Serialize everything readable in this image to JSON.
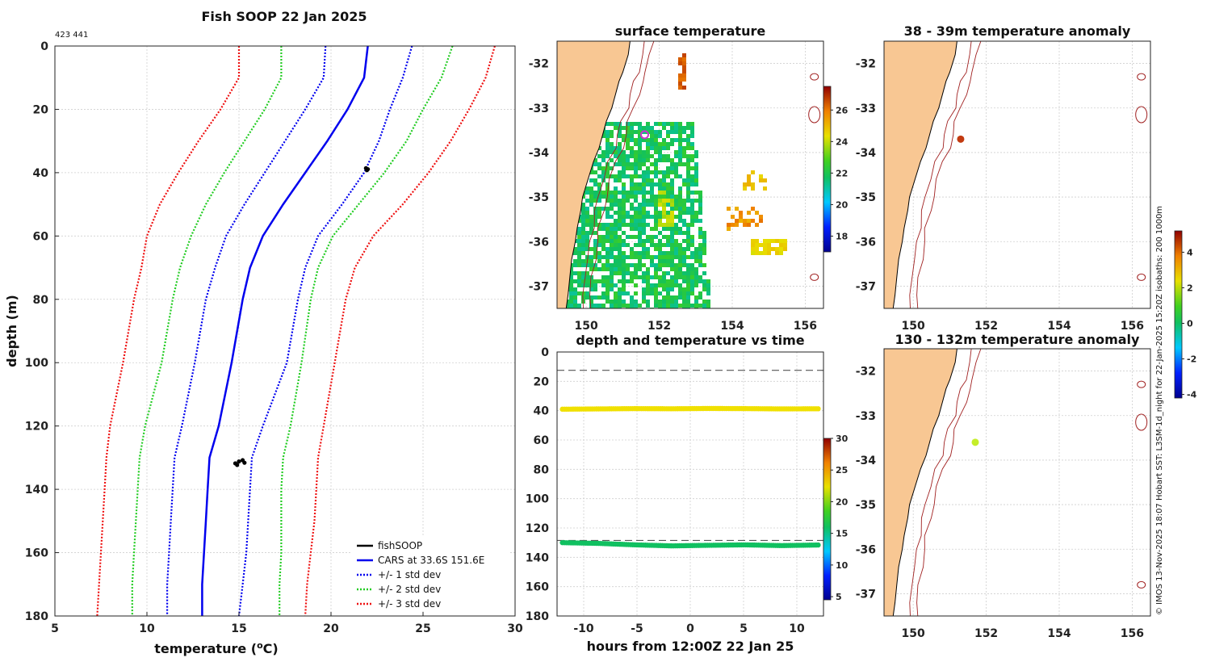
{
  "figure": {
    "title": "Fish SOOP 22 Jan 2025",
    "id_label": "423 441",
    "credit": "© IMOS 13-Nov-2025 18:07 Hobart SST: L3SM-1d_night for 22-Jan-2025 15:20Z isobaths: 200  1000m"
  },
  "colors": {
    "land": "#f8c793",
    "coast": "#000000",
    "isobath": "#a02020",
    "cars": "#0000ee",
    "sd1": "#0000ee",
    "sd2": "#22cc22",
    "sd3": "#ee1111",
    "fish": "#000000",
    "ref_line": "#555555"
  },
  "chart_data": [
    {
      "id": "profile",
      "type": "line",
      "title": "Fish SOOP 22 Jan 2025",
      "xlabel": "temperature (",
      "xlabel_sup": "o",
      "xlabel_tail": "C)",
      "ylabel": "depth (m)",
      "xlim": [
        5,
        30
      ],
      "ylim": [
        0,
        180
      ],
      "y_reversed": true,
      "xticks": [
        5,
        10,
        15,
        20,
        25,
        30
      ],
      "yticks": [
        0,
        20,
        40,
        60,
        80,
        100,
        120,
        140,
        160,
        180
      ],
      "depths": [
        0,
        10,
        20,
        30,
        40,
        50,
        60,
        70,
        80,
        100,
        120,
        130,
        140,
        150,
        160,
        170,
        180
      ],
      "series": [
        {
          "name": "CARS at 33.6S 151.6E",
          "key": "cars",
          "style": "solid",
          "values": [
            22.0,
            21.8,
            20.9,
            19.8,
            18.6,
            17.4,
            16.3,
            15.6,
            15.2,
            14.6,
            13.9,
            13.4,
            13.3,
            13.2,
            13.1,
            13.0,
            13.0
          ]
        },
        {
          "name": "+1 std dev",
          "key": "sd1",
          "style": "dotted",
          "legend": false,
          "values": [
            24.4,
            23.9,
            23.2,
            22.6,
            21.8,
            20.6,
            19.3,
            18.6,
            18.2,
            17.6,
            16.3,
            15.7,
            15.6,
            15.5,
            15.4,
            15.2,
            15.0
          ]
        },
        {
          "name": "-1 std dev",
          "key": "sd1",
          "style": "dotted",
          "legend": false,
          "values": [
            19.7,
            19.6,
            18.6,
            17.5,
            16.4,
            15.3,
            14.3,
            13.7,
            13.2,
            12.6,
            11.9,
            11.5,
            11.4,
            11.3,
            11.2,
            11.1,
            11.1
          ]
        },
        {
          "name": "+2 std dev",
          "key": "sd2",
          "style": "dotted",
          "legend": false,
          "values": [
            26.6,
            26.0,
            25.0,
            24.1,
            22.9,
            21.5,
            20.1,
            19.3,
            18.9,
            18.4,
            17.8,
            17.4,
            17.3,
            17.3,
            17.3,
            17.2,
            17.2
          ]
        },
        {
          "name": "-2 std dev",
          "key": "sd2",
          "style": "dotted",
          "legend": false,
          "values": [
            17.3,
            17.3,
            16.4,
            15.3,
            14.2,
            13.2,
            12.4,
            11.8,
            11.4,
            10.8,
            9.9,
            9.6,
            9.5,
            9.4,
            9.3,
            9.2,
            9.2
          ]
        },
        {
          "name": "+3 std dev",
          "key": "sd3",
          "style": "dotted",
          "legend": false,
          "values": [
            28.9,
            28.4,
            27.5,
            26.5,
            25.3,
            23.9,
            22.3,
            21.3,
            20.8,
            20.2,
            19.6,
            19.3,
            19.2,
            19.1,
            18.9,
            18.7,
            18.6
          ]
        },
        {
          "name": "-3 std dev",
          "key": "sd3",
          "style": "dotted",
          "legend": false,
          "values": [
            15.0,
            15.0,
            14.0,
            12.8,
            11.7,
            10.7,
            10.0,
            9.7,
            9.3,
            8.7,
            8.0,
            7.8,
            7.7,
            7.6,
            7.5,
            7.4,
            7.3
          ]
        }
      ],
      "fish_points": [
        {
          "t": 21.9,
          "d": 38.6
        },
        {
          "t": 22.0,
          "d": 38.9
        },
        {
          "t": 21.95,
          "d": 39.2
        },
        {
          "t": 14.8,
          "d": 131.8
        },
        {
          "t": 15.0,
          "d": 131.2
        },
        {
          "t": 15.2,
          "d": 130.8
        },
        {
          "t": 15.3,
          "d": 131.6
        },
        {
          "t": 14.9,
          "d": 132.3
        }
      ],
      "legend": {
        "placement": "bottom-right",
        "entries": [
          {
            "label": "fishSOOP",
            "key": "fish",
            "style": "solid"
          },
          {
            "label": "CARS at 33.6S 151.6E",
            "key": "cars",
            "style": "solid"
          },
          {
            "label": "+/- 1 std dev",
            "key": "sd1",
            "style": "dotted"
          },
          {
            "label": "+/- 2 std dev",
            "key": "sd2",
            "style": "dotted"
          },
          {
            "label": "+/- 3 std dev",
            "key": "sd3",
            "style": "dotted"
          }
        ]
      }
    },
    {
      "id": "sst_map",
      "type": "heatmap",
      "title": "surface temperature",
      "xlim": [
        149.2,
        156.5
      ],
      "ylim": [
        -37.5,
        -31.5
      ],
      "xticks": [
        150,
        152,
        154,
        156
      ],
      "yticks": [
        -32,
        -33,
        -34,
        -35,
        -36,
        -37
      ],
      "colorbar": {
        "range": [
          17,
          27.5
        ],
        "ticks": [
          18,
          20,
          22,
          24,
          26
        ]
      },
      "marker": {
        "lon": 151.6,
        "lat": -33.6,
        "color": "#cc33cc"
      }
    },
    {
      "id": "anomaly_38",
      "type": "scatter",
      "title": "38 - 39m temperature anomaly",
      "xlim": [
        149.2,
        156.5
      ],
      "ylim": [
        -37.5,
        -31.5
      ],
      "xticks": [
        150,
        152,
        154,
        156
      ],
      "yticks": [
        -32,
        -33,
        -34,
        -35,
        -36,
        -37
      ],
      "point": {
        "lon": 151.3,
        "lat": -33.7,
        "anomaly": 4.5,
        "color": "#c23a10"
      }
    },
    {
      "id": "anomaly_130",
      "type": "scatter",
      "title": "130 - 132m temperature anomaly",
      "xlim": [
        149.2,
        156.5
      ],
      "ylim": [
        -37.5,
        -31.5
      ],
      "xticks": [
        150,
        152,
        154,
        156
      ],
      "yticks": [
        -32,
        -33,
        -34,
        -35,
        -36,
        -37
      ],
      "point": {
        "lon": 151.7,
        "lat": -33.6,
        "anomaly": 2.8,
        "color": "#c5ee2a"
      },
      "colorbar": {
        "range": [
          -4.2,
          5.2
        ],
        "ticks": [
          -4,
          -2,
          0,
          2,
          4
        ]
      }
    },
    {
      "id": "depth_time",
      "type": "scatter",
      "title": "depth and temperature vs time",
      "xlabel": "hours from 12:00Z 22 Jan 25",
      "xlim": [
        -12.5,
        12.5
      ],
      "ylim": [
        0,
        180
      ],
      "y_reversed": true,
      "xticks": [
        -10,
        -5,
        0,
        5,
        10
      ],
      "yticks": [
        0,
        20,
        40,
        60,
        80,
        100,
        120,
        140,
        160,
        180
      ],
      "ref_depths": [
        12.5,
        128.5
      ],
      "series": [
        {
          "name": "shallow",
          "t_start": -12,
          "t_end": 12,
          "depths": [
            39,
            38.8,
            38.6,
            38.7,
            38.5,
            38.6,
            38.8,
            38.7
          ],
          "temperature": 23.5,
          "color": "#f0e000"
        },
        {
          "name": "deep",
          "t_start": -12,
          "t_end": 12,
          "depths": [
            130,
            130.5,
            131.5,
            132.2,
            131.8,
            131.5,
            132.0,
            131.6
          ],
          "temperature": 16.5,
          "color": "#10c060"
        }
      ],
      "colorbar": {
        "range": [
          4.5,
          30
        ],
        "ticks": [
          5,
          10,
          15,
          20,
          25,
          30
        ]
      }
    }
  ]
}
